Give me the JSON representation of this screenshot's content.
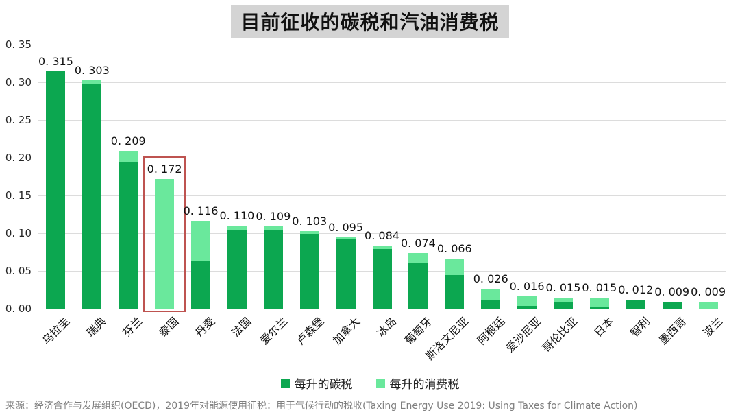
{
  "title": "目前征收的碳税和汽油消费税",
  "legend": {
    "items": [
      {
        "label": "每升的碳税",
        "color": "#0ca750"
      },
      {
        "label": "每升的消费税",
        "color": "#6ae89c"
      }
    ]
  },
  "source": "来源：经济合作与发展组织(OECD)，2019年对能源使用征税：用于气候行动的税收(Taxing Energy Use 2019: Using Taxes for Climate Action)",
  "chart_data": {
    "type": "bar",
    "stacked": true,
    "title": "目前征收的碳税和汽油消费税",
    "categories": [
      "乌拉圭",
      "瑞典",
      "芬兰",
      "泰国",
      "丹麦",
      "法国",
      "爱尔兰",
      "卢森堡",
      "加拿大",
      "冰岛",
      "葡萄牙",
      "斯洛文尼亚",
      "阿根廷",
      "爱沙尼亚",
      "哥伦比亚",
      "日本",
      "智利",
      "墨西哥",
      "波兰"
    ],
    "series": [
      {
        "name": "每升的碳税",
        "color": "#0ca750",
        "values": [
          0.315,
          0.298,
          0.195,
          0,
          0.063,
          0.105,
          0.104,
          0.099,
          0.092,
          0.079,
          0.061,
          0.045,
          0.011,
          0.004,
          0.008,
          0.003,
          0.012,
          0.009,
          0
        ]
      },
      {
        "name": "每升的消费税",
        "color": "#6ae89c",
        "values": [
          0,
          0.005,
          0.014,
          0.172,
          0.053,
          0.005,
          0.005,
          0.004,
          0.003,
          0.005,
          0.013,
          0.021,
          0.015,
          0.012,
          0.007,
          0.012,
          0,
          0,
          0.009
        ]
      }
    ],
    "totals": [
      0.315,
      0.303,
      0.209,
      0.172,
      0.116,
      0.11,
      0.109,
      0.103,
      0.095,
      0.084,
      0.074,
      0.066,
      0.026,
      0.016,
      0.015,
      0.015,
      0.012,
      0.009,
      0.009
    ],
    "total_labels": [
      "0. 315",
      "0. 303",
      "0. 209",
      "0. 172",
      "0. 116",
      "0. 110",
      "0. 109",
      "0. 103",
      "0. 095",
      "0. 084",
      "0. 074",
      "0. 066",
      "0. 026",
      "0. 016",
      "0. 015",
      "0. 015",
      "0. 012",
      "0. 009",
      "0. 009"
    ],
    "y_ticks": [
      "0. 35",
      "0. 30",
      "0. 25",
      "0. 20",
      "0. 15",
      "0. 10",
      "0. 05",
      "0. 00"
    ],
    "ylim": [
      0,
      0.35
    ],
    "grid": true,
    "legend_position": "bottom",
    "highlight": {
      "category": "泰国",
      "index": 3,
      "box_color": "#be5350"
    }
  }
}
